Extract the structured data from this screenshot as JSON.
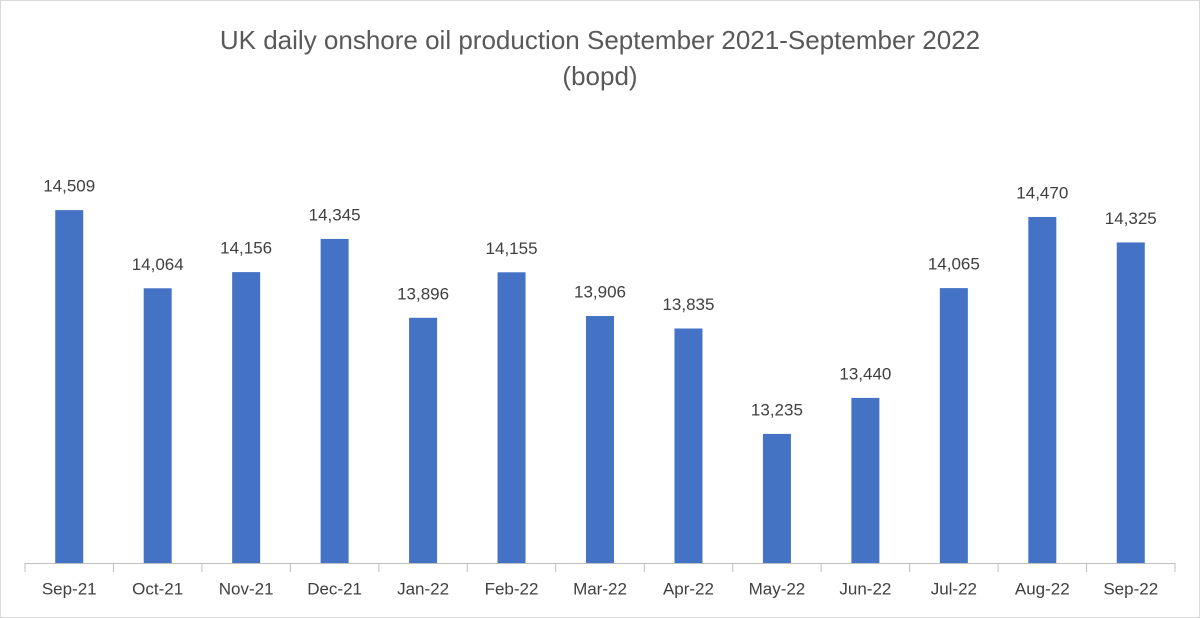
{
  "chart_data": {
    "type": "bar",
    "title": [
      "UK daily onshore oil production September 2021-September 2022",
      "(bopd)"
    ],
    "categories": [
      "Sep-21",
      "Oct-21",
      "Nov-21",
      "Dec-21",
      "Jan-22",
      "Feb-22",
      "Mar-22",
      "Apr-22",
      "May-22",
      "Jun-22",
      "Jul-22",
      "Aug-22",
      "Sep-22"
    ],
    "values": [
      14509,
      14064,
      14156,
      14345,
      13896,
      14155,
      13906,
      13835,
      13235,
      13440,
      14065,
      14470,
      14325
    ],
    "value_labels": [
      "14,509",
      "14,064",
      "14,156",
      "14,345",
      "13,896",
      "14,155",
      "13,906",
      "13,835",
      "13,235",
      "13,440",
      "14,065",
      "14,470",
      "14,325"
    ],
    "color": "#4472c4",
    "ylim": [
      12500,
      14800
    ]
  }
}
